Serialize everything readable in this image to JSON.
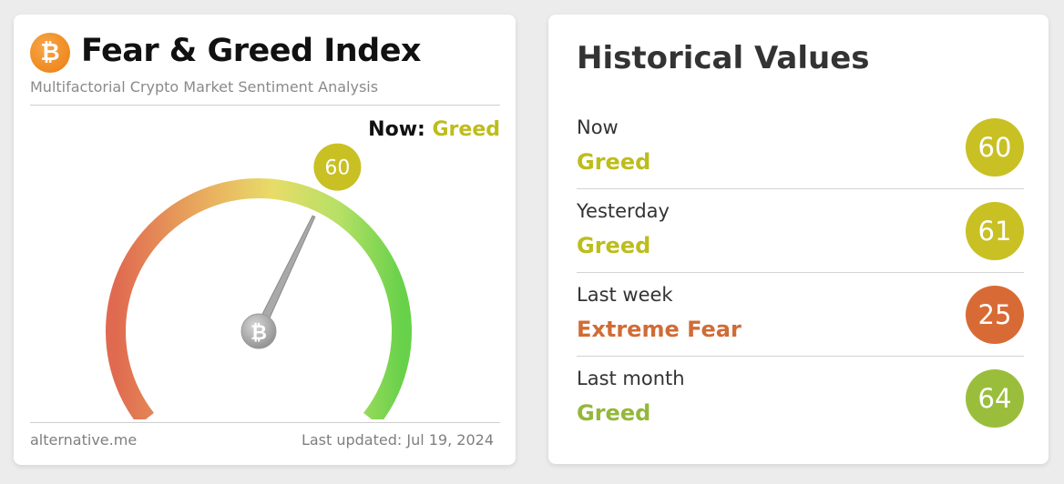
{
  "fear_greed": {
    "title": "Fear & Greed Index",
    "subtitle": "Multifactorial Crypto Market Sentiment Analysis",
    "logo_icon": "bitcoin-icon",
    "now_label": "Now:",
    "now_value": "Greed",
    "value": "60",
    "value_number": 60,
    "footer_source": "alternative.me",
    "footer_updated": "Last updated: Jul 19, 2024",
    "colors": {
      "greed": "#c9c024",
      "extreme_fear": "#d86b35",
      "greed_strong": "#9abe3c",
      "gauge_start": "#e06a50",
      "gauge_mid": "#e8dc68",
      "gauge_end": "#68d14a"
    }
  },
  "historical": {
    "title": "Historical Values",
    "rows": [
      {
        "period": "Now",
        "label": "Greed",
        "value": "60",
        "color": "#c9c024",
        "label_color": "#bdbd1c"
      },
      {
        "period": "Yesterday",
        "label": "Greed",
        "value": "61",
        "color": "#c9c024",
        "label_color": "#bdbd1c"
      },
      {
        "period": "Last week",
        "label": "Extreme Fear",
        "value": "25",
        "color": "#d86b35",
        "label_color": "#d06c35"
      },
      {
        "period": "Last month",
        "label": "Greed",
        "value": "64",
        "color": "#9abe3c",
        "label_color": "#94b83a"
      }
    ]
  }
}
